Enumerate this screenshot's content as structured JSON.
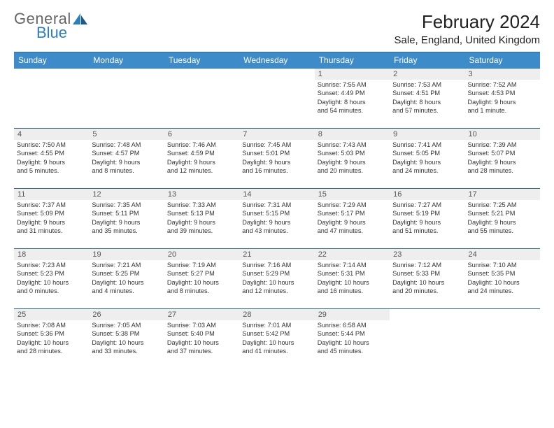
{
  "logo": {
    "line1": "General",
    "line2": "Blue"
  },
  "title": "February 2024",
  "location": "Sale, England, United Kingdom",
  "colors": {
    "header_bg": "#3d8bc8",
    "rule": "#2a6da3",
    "daynum_bg": "#eeeeee",
    "text": "#333333",
    "logo_blue": "#2a7fc4"
  },
  "weekdays": [
    "Sunday",
    "Monday",
    "Tuesday",
    "Wednesday",
    "Thursday",
    "Friday",
    "Saturday"
  ],
  "weeks": [
    [
      null,
      null,
      null,
      null,
      {
        "n": "1",
        "sr": "7:55 AM",
        "ss": "4:49 PM",
        "dl": "8 hours and 54 minutes."
      },
      {
        "n": "2",
        "sr": "7:53 AM",
        "ss": "4:51 PM",
        "dl": "8 hours and 57 minutes."
      },
      {
        "n": "3",
        "sr": "7:52 AM",
        "ss": "4:53 PM",
        "dl": "9 hours and 1 minute."
      }
    ],
    [
      {
        "n": "4",
        "sr": "7:50 AM",
        "ss": "4:55 PM",
        "dl": "9 hours and 5 minutes."
      },
      {
        "n": "5",
        "sr": "7:48 AM",
        "ss": "4:57 PM",
        "dl": "9 hours and 8 minutes."
      },
      {
        "n": "6",
        "sr": "7:46 AM",
        "ss": "4:59 PM",
        "dl": "9 hours and 12 minutes."
      },
      {
        "n": "7",
        "sr": "7:45 AM",
        "ss": "5:01 PM",
        "dl": "9 hours and 16 minutes."
      },
      {
        "n": "8",
        "sr": "7:43 AM",
        "ss": "5:03 PM",
        "dl": "9 hours and 20 minutes."
      },
      {
        "n": "9",
        "sr": "7:41 AM",
        "ss": "5:05 PM",
        "dl": "9 hours and 24 minutes."
      },
      {
        "n": "10",
        "sr": "7:39 AM",
        "ss": "5:07 PM",
        "dl": "9 hours and 28 minutes."
      }
    ],
    [
      {
        "n": "11",
        "sr": "7:37 AM",
        "ss": "5:09 PM",
        "dl": "9 hours and 31 minutes."
      },
      {
        "n": "12",
        "sr": "7:35 AM",
        "ss": "5:11 PM",
        "dl": "9 hours and 35 minutes."
      },
      {
        "n": "13",
        "sr": "7:33 AM",
        "ss": "5:13 PM",
        "dl": "9 hours and 39 minutes."
      },
      {
        "n": "14",
        "sr": "7:31 AM",
        "ss": "5:15 PM",
        "dl": "9 hours and 43 minutes."
      },
      {
        "n": "15",
        "sr": "7:29 AM",
        "ss": "5:17 PM",
        "dl": "9 hours and 47 minutes."
      },
      {
        "n": "16",
        "sr": "7:27 AM",
        "ss": "5:19 PM",
        "dl": "9 hours and 51 minutes."
      },
      {
        "n": "17",
        "sr": "7:25 AM",
        "ss": "5:21 PM",
        "dl": "9 hours and 55 minutes."
      }
    ],
    [
      {
        "n": "18",
        "sr": "7:23 AM",
        "ss": "5:23 PM",
        "dl": "10 hours and 0 minutes."
      },
      {
        "n": "19",
        "sr": "7:21 AM",
        "ss": "5:25 PM",
        "dl": "10 hours and 4 minutes."
      },
      {
        "n": "20",
        "sr": "7:19 AM",
        "ss": "5:27 PM",
        "dl": "10 hours and 8 minutes."
      },
      {
        "n": "21",
        "sr": "7:16 AM",
        "ss": "5:29 PM",
        "dl": "10 hours and 12 minutes."
      },
      {
        "n": "22",
        "sr": "7:14 AM",
        "ss": "5:31 PM",
        "dl": "10 hours and 16 minutes."
      },
      {
        "n": "23",
        "sr": "7:12 AM",
        "ss": "5:33 PM",
        "dl": "10 hours and 20 minutes."
      },
      {
        "n": "24",
        "sr": "7:10 AM",
        "ss": "5:35 PM",
        "dl": "10 hours and 24 minutes."
      }
    ],
    [
      {
        "n": "25",
        "sr": "7:08 AM",
        "ss": "5:36 PM",
        "dl": "10 hours and 28 minutes."
      },
      {
        "n": "26",
        "sr": "7:05 AM",
        "ss": "5:38 PM",
        "dl": "10 hours and 33 minutes."
      },
      {
        "n": "27",
        "sr": "7:03 AM",
        "ss": "5:40 PM",
        "dl": "10 hours and 37 minutes."
      },
      {
        "n": "28",
        "sr": "7:01 AM",
        "ss": "5:42 PM",
        "dl": "10 hours and 41 minutes."
      },
      {
        "n": "29",
        "sr": "6:58 AM",
        "ss": "5:44 PM",
        "dl": "10 hours and 45 minutes."
      },
      null,
      null
    ]
  ],
  "labels": {
    "sunrise": "Sunrise:",
    "sunset": "Sunset:",
    "daylight": "Daylight:"
  }
}
